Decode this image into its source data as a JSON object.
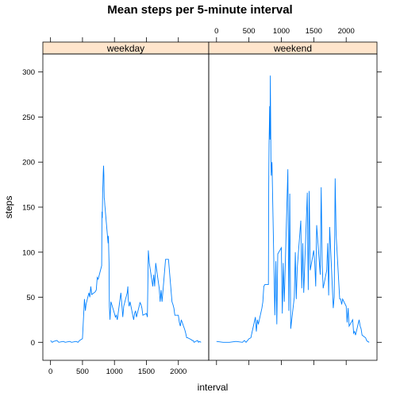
{
  "chart_data": {
    "type": "line",
    "title": "Mean steps per 5-minute interval",
    "xlabel": "interval",
    "ylabel": "steps",
    "xlim": [
      -120,
      2475
    ],
    "ylim": [
      -20,
      320
    ],
    "xticks": [
      0,
      500,
      1000,
      1500,
      2000
    ],
    "yticks": [
      0,
      50,
      100,
      150,
      200,
      250,
      300
    ],
    "line_color": "#0080ff",
    "strip_color": "#ffe5cc",
    "grid": false,
    "panels": [
      {
        "name": "weekday",
        "x": [
          0,
          25,
          50,
          100,
          130,
          200,
          230,
          300,
          330,
          400,
          430,
          455,
          500,
          530,
          545,
          555,
          600,
          615,
          630,
          645,
          700,
          715,
          730,
          745,
          800,
          805,
          810,
          815,
          820,
          825,
          830,
          835,
          840,
          845,
          850,
          855,
          900,
          905,
          910,
          915,
          920,
          930,
          945,
          1000,
          1015,
          1030,
          1045,
          1100,
          1115,
          1130,
          1145,
          1200,
          1210,
          1215,
          1230,
          1245,
          1300,
          1315,
          1330,
          1345,
          1400,
          1415,
          1430,
          1445,
          1500,
          1515,
          1530,
          1545,
          1600,
          1615,
          1630,
          1645,
          1700,
          1715,
          1730,
          1745,
          1800,
          1815,
          1830,
          1845,
          1900,
          1915,
          1930,
          1945,
          2000,
          2015,
          2030,
          2045,
          2100,
          2115,
          2130,
          2145,
          2200,
          2215,
          2230,
          2245,
          2300,
          2315,
          2330,
          2355
        ],
        "y": [
          2,
          0,
          1,
          2,
          0,
          1,
          0,
          1,
          0,
          1,
          0,
          2,
          4,
          48,
          35,
          42,
          55,
          50,
          62,
          53,
          56,
          58,
          72,
          70,
          85,
          145,
          138,
          165,
          175,
          188,
          196,
          185,
          160,
          158,
          152,
          148,
          110,
          118,
          102,
          88,
          40,
          25,
          45,
          32,
          28,
          30,
          25,
          55,
          42,
          28,
          40,
          55,
          62,
          48,
          40,
          45,
          25,
          32,
          35,
          28,
          44,
          42,
          38,
          30,
          32,
          28,
          102,
          88,
          62,
          75,
          62,
          88,
          60,
          45,
          58,
          45,
          92,
          92,
          92,
          92,
          45,
          42,
          38,
          30,
          30,
          22,
          18,
          25,
          14,
          10,
          5,
          5,
          3,
          2,
          2,
          0,
          2,
          0,
          1,
          0
        ]
      },
      {
        "name": "weekend",
        "x": [
          0,
          100,
          200,
          300,
          400,
          430,
          455,
          500,
          530,
          545,
          600,
          615,
          630,
          645,
          700,
          715,
          730,
          745,
          800,
          805,
          810,
          815,
          820,
          825,
          830,
          835,
          840,
          845,
          850,
          855,
          900,
          915,
          930,
          945,
          1000,
          1015,
          1030,
          1045,
          1100,
          1115,
          1130,
          1145,
          1200,
          1215,
          1230,
          1245,
          1300,
          1315,
          1330,
          1345,
          1400,
          1415,
          1430,
          1445,
          1500,
          1515,
          1530,
          1545,
          1600,
          1615,
          1630,
          1645,
          1700,
          1715,
          1730,
          1745,
          1800,
          1815,
          1830,
          1845,
          1900,
          1915,
          1930,
          1945,
          2000,
          2015,
          2030,
          2045,
          2100,
          2115,
          2130,
          2145,
          2200,
          2215,
          2230,
          2245,
          2300,
          2315,
          2330,
          2355
        ],
        "y": [
          1,
          0,
          0,
          1,
          0,
          2,
          0,
          4,
          5,
          10,
          28,
          12,
          25,
          20,
          38,
          45,
          62,
          64,
          64,
          175,
          220,
          240,
          262,
          225,
          296,
          250,
          200,
          185,
          195,
          200,
          30,
          90,
          20,
          98,
          105,
          32,
          88,
          45,
          192,
          35,
          165,
          15,
          50,
          100,
          48,
          82,
          135,
          60,
          110,
          55,
          166,
          58,
          168,
          80,
          102,
          88,
          62,
          130,
          75,
          172,
          85,
          60,
          80,
          110,
          52,
          128,
          38,
          50,
          182,
          120,
          48,
          48,
          42,
          48,
          40,
          22,
          38,
          18,
          25,
          10,
          12,
          8,
          25,
          18,
          15,
          8,
          5,
          2,
          1,
          0
        ]
      }
    ]
  }
}
